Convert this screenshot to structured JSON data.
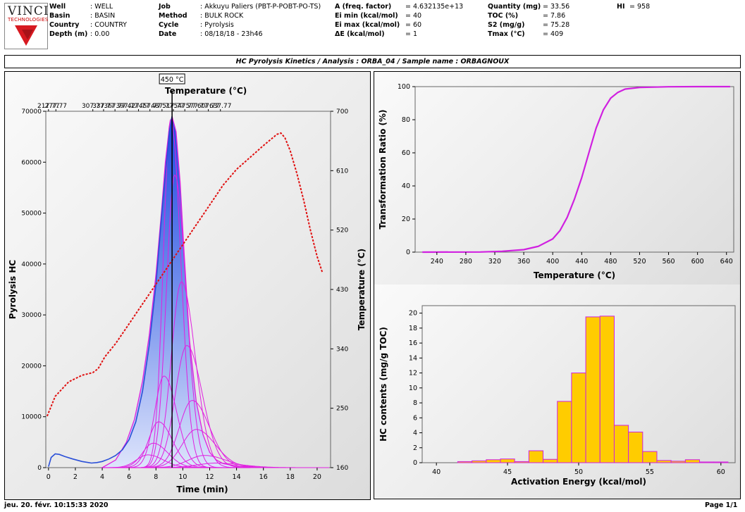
{
  "header": {
    "logo": {
      "name": "VINCI",
      "sub": "TECHNOLOGIES"
    },
    "col1": [
      {
        "label": "Well",
        "value": ": WELL"
      },
      {
        "label": "Basin",
        "value": ": BASIN"
      },
      {
        "label": "Country",
        "value": ": COUNTRY"
      },
      {
        "label": "Depth (m)",
        "value": ": 0.00"
      }
    ],
    "col2": [
      {
        "label": "Job",
        "value": ": Akkuyu Paliers (PBT-P-POBT-PO-TS)"
      },
      {
        "label": "Method",
        "value": ": BULK ROCK"
      },
      {
        "label": "Cycle",
        "value": ": Pyrolysis"
      },
      {
        "label": "Date",
        "value": ": 08/18/18 - 23h46"
      }
    ],
    "col3": [
      {
        "label": "A (freq. factor)",
        "value": "= 4.632135e+13"
      },
      {
        "label": "Ei min (kcal/mol)",
        "value": "= 40"
      },
      {
        "label": "Ei max (kcal/mol)",
        "value": "= 60"
      },
      {
        "label": "ΔE (kcal/mol)",
        "value": "= 1"
      }
    ],
    "col4": [
      {
        "label": "Quantity (mg)",
        "value": "= 33.56"
      },
      {
        "label": "TOC (%)",
        "value": "= 7.86"
      },
      {
        "label": "S2 (mg/g)",
        "value": "= 75.28"
      },
      {
        "label": "Tmax (°C)",
        "value": "= 409"
      }
    ],
    "col5": [
      {
        "label": "HI",
        "value": "= 958"
      }
    ]
  },
  "title": "HC Pyrolysis Kinetics / Analysis : ORBA_04 / Sample name : ORBAGNOUX",
  "footer": {
    "left": "jeu. 20. févr. 10:15:33 2020",
    "right": "Page 1/1"
  },
  "chart_data": [
    {
      "type": "area",
      "cursor_label": "450 °C",
      "cursor_time": 9.2,
      "xlabel": "Time (min)",
      "ylabel": "Pyrolysis HC",
      "y2label": "Temperature (°C)",
      "toplabel": "Temperature (°C)",
      "xlim": [
        -0.2,
        21
      ],
      "ylim": [
        0,
        70000
      ],
      "y2lim": [
        160,
        700
      ],
      "xticks": [
        0,
        2,
        4,
        6,
        8,
        10,
        12,
        14,
        16,
        18,
        20
      ],
      "yticks": [
        0,
        10000,
        20000,
        30000,
        40000,
        50000,
        60000,
        70000
      ],
      "y2ticks": [
        160,
        250,
        340,
        430,
        520,
        610,
        700
      ],
      "top_ticks": [
        {
          "label": "217.77",
          "x": 0.0
        },
        {
          "label": "277.77",
          "x": 0.55
        },
        {
          "label": "307.77",
          "x": 3.3
        },
        {
          "label": "337.77",
          "x": 4.1
        },
        {
          "label": "367.77",
          "x": 4.95
        },
        {
          "label": "397.77",
          "x": 5.85
        },
        {
          "label": "427.77",
          "x": 6.7
        },
        {
          "label": "457.77",
          "x": 7.55
        },
        {
          "label": "487.77",
          "x": 8.45
        },
        {
          "label": "517.77",
          "x": 9.3
        },
        {
          "label": "547.77",
          "x": 10.15
        },
        {
          "label": "577.77",
          "x": 11.05
        },
        {
          "label": "607.77",
          "x": 11.9
        },
        {
          "label": "637.77",
          "x": 12.8
        }
      ],
      "series": [
        {
          "kind": "envelope",
          "x": [
            4.0,
            5.0,
            5.8,
            6.4,
            7.0,
            7.5,
            8.0,
            8.4,
            8.7,
            9.0,
            9.2,
            9.5,
            9.8,
            10.1,
            10.5,
            11.0,
            11.5,
            12.0,
            12.5,
            13.0,
            14.0,
            15.0
          ],
          "y": [
            0,
            1500,
            5000,
            9500,
            17000,
            26000,
            38000,
            50000,
            60000,
            67000,
            69000,
            66000,
            56000,
            42000,
            25000,
            13000,
            6500,
            3000,
            1500,
            800,
            300,
            100
          ]
        },
        {
          "kind": "temperature",
          "x": [
            -0.1,
            0.5,
            1.5,
            2.5,
            3.3,
            3.7,
            4.2,
            5.0,
            6.0,
            7.0,
            8.0,
            9.0,
            10.0,
            11.0,
            12.0,
            13.0,
            14.0,
            15.0,
            16.0,
            17.0,
            17.3,
            17.6,
            18.0,
            18.5,
            19.0,
            19.5,
            20.0,
            20.4
          ],
          "y": [
            238,
            268,
            290,
            300,
            304,
            310,
            328,
            348,
            378,
            408,
            438,
            468,
            498,
            528,
            558,
            588,
            612,
            630,
            648,
            665,
            667,
            660,
            640,
            605,
            565,
            520,
            480,
            455
          ]
        },
        {
          "kind": "measured",
          "x": [
            0.0,
            0.2,
            0.5,
            0.8,
            1.2,
            1.8,
            2.5,
            3.2,
            3.6,
            4.0,
            4.5,
            5.0,
            5.5,
            6.0,
            6.5,
            7.0,
            7.5,
            8.0,
            8.5,
            9.0,
            9.2
          ],
          "y": [
            200,
            2000,
            2700,
            2600,
            2200,
            1700,
            1200,
            900,
            1000,
            1200,
            1700,
            2400,
            3500,
            5500,
            9000,
            15000,
            24000,
            36000,
            52000,
            66000,
            69000
          ]
        }
      ],
      "components": [
        {
          "peak_x": 9.1,
          "peak_y": 68500,
          "width": 0.55
        },
        {
          "peak_x": 9.4,
          "peak_y": 57500,
          "width": 0.62
        },
        {
          "peak_x": 9.9,
          "peak_y": 36500,
          "width": 0.75
        },
        {
          "peak_x": 10.3,
          "peak_y": 24000,
          "width": 0.85
        },
        {
          "peak_x": 10.7,
          "peak_y": 13200,
          "width": 0.95
        },
        {
          "peak_x": 11.0,
          "peak_y": 7500,
          "width": 1.05
        },
        {
          "peak_x": 11.6,
          "peak_y": 2400,
          "width": 1.2
        },
        {
          "peak_x": 12.5,
          "peak_y": 900,
          "width": 1.4
        },
        {
          "peak_x": 8.6,
          "peak_y": 18000,
          "width": 0.7
        },
        {
          "peak_x": 8.2,
          "peak_y": 9000,
          "width": 0.75
        },
        {
          "peak_x": 7.8,
          "peak_y": 4800,
          "width": 0.8
        },
        {
          "peak_x": 7.4,
          "peak_y": 2500,
          "width": 0.85
        }
      ]
    },
    {
      "type": "line",
      "xlabel": "Temperature (°C)",
      "ylabel": "Transformation Ratio (%)",
      "xlim": [
        210,
        650
      ],
      "ylim": [
        0,
        100
      ],
      "xticks": [
        240,
        280,
        320,
        360,
        400,
        440,
        480,
        520,
        560,
        600,
        640
      ],
      "yticks": [
        0,
        20,
        40,
        60,
        80,
        100
      ],
      "x": [
        220,
        300,
        330,
        360,
        380,
        400,
        410,
        420,
        430,
        440,
        450,
        460,
        470,
        480,
        490,
        500,
        520,
        560,
        600,
        645
      ],
      "y": [
        0,
        0.1,
        0.5,
        1.5,
        3.5,
        8,
        13,
        21,
        32,
        45,
        60,
        75,
        86,
        93,
        96.5,
        98.5,
        99.5,
        99.9,
        100,
        100
      ]
    },
    {
      "type": "bar",
      "xlabel": "Activation Energy (kcal/mol)",
      "ylabel": "HC contents (mg/g TOC)",
      "xlim": [
        39,
        61
      ],
      "ylim": [
        0,
        21
      ],
      "xticks": [
        40,
        45,
        50,
        55,
        60
      ],
      "yticks": [
        0,
        2,
        4,
        6,
        8,
        10,
        12,
        14,
        16,
        18,
        20
      ],
      "energies": [
        40,
        41,
        42,
        43,
        44,
        45,
        46,
        47,
        48,
        49,
        50,
        51,
        52,
        53,
        54,
        55,
        56,
        57,
        58,
        59,
        60
      ],
      "values": [
        0,
        0,
        0.15,
        0.25,
        0.4,
        0.5,
        0.15,
        1.6,
        0.45,
        8.2,
        12,
        19.5,
        19.6,
        5,
        4.1,
        1.5,
        0.3,
        0.2,
        0.4,
        0.1,
        0.1
      ]
    }
  ]
}
